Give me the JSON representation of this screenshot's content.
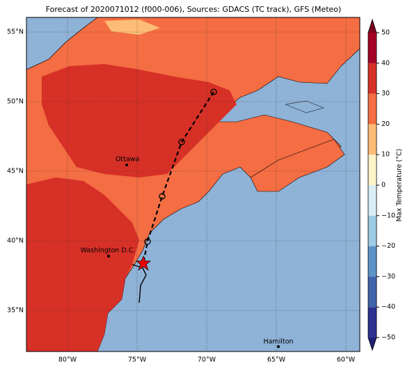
{
  "title": "Forecast of 2020071012 (f000-006), Sources: GDACS (TC track), GFS (Meteo)",
  "map": {
    "lon_ticks": [
      {
        "value": -80,
        "label": "80°W"
      },
      {
        "value": -75,
        "label": "75°W"
      },
      {
        "value": -70,
        "label": "70°W"
      },
      {
        "value": -65,
        "label": "65°W"
      },
      {
        "value": -60,
        "label": "60°W"
      }
    ],
    "lat_ticks": [
      {
        "value": 55,
        "label": "55°N"
      },
      {
        "value": 50,
        "label": "50°N"
      },
      {
        "value": 45,
        "label": "45°N"
      },
      {
        "value": 40,
        "label": "40°N"
      },
      {
        "value": 35,
        "label": "35°N"
      }
    ],
    "cities": [
      "Ottawa",
      "Washington D.C.",
      "Hamilton"
    ]
  },
  "colorbar": {
    "label": "Max Temperature (°C)",
    "ticks": [
      {
        "value": -50,
        "label": "−50"
      },
      {
        "value": -40,
        "label": "−40"
      },
      {
        "value": -30,
        "label": "−30"
      },
      {
        "value": -20,
        "label": "−20"
      },
      {
        "value": -10,
        "label": "−10"
      },
      0,
      10,
      20,
      30,
      40,
      50
    ],
    "colors": [
      "#1e1f75",
      "#2e3192",
      "#3f64ac",
      "#5d93c7",
      "#9dcbe3",
      "#d8eef5",
      "#fdf3c8",
      "#fdbd76",
      "#f46d43",
      "#d73027",
      "#a50026",
      "#7a0020"
    ]
  }
}
